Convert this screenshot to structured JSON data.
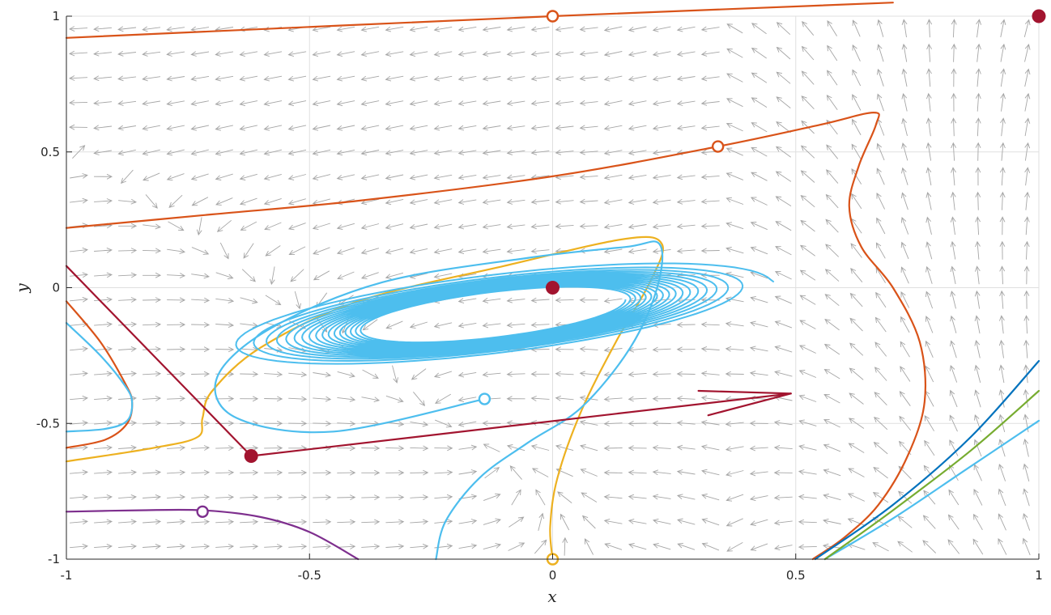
{
  "chart_data": {
    "type": "line",
    "title": "",
    "xlabel": "x",
    "ylabel": "y",
    "xlim": [
      -1,
      1
    ],
    "ylim": [
      -1,
      1
    ],
    "grid": true,
    "legend": "none",
    "x_ticks": [
      {
        "value": -1,
        "label": "-1"
      },
      {
        "value": -0.5,
        "label": "-0.5"
      },
      {
        "value": 0,
        "label": "0"
      },
      {
        "value": 0.5,
        "label": "0.5"
      },
      {
        "value": 1,
        "label": "1"
      }
    ],
    "y_ticks": [
      {
        "value": -1,
        "label": "-1"
      },
      {
        "value": -0.5,
        "label": "-0.5"
      },
      {
        "value": 0,
        "label": "0"
      },
      {
        "value": 0.5,
        "label": "0.5"
      },
      {
        "value": 1,
        "label": "1"
      }
    ],
    "colors": {
      "orange": "#d95319",
      "yellow": "#edb120",
      "lightblue": "#4dbeee",
      "darkblue": "#0072bd",
      "green": "#77ac30",
      "purple": "#7e2f8e",
      "maroon": "#a2142f",
      "field": "#a6a6a6",
      "grid": "#dfdfdf"
    },
    "series": [
      {
        "color": "orange",
        "x": [
          -1,
          0,
          0.7
        ],
        "y": [
          0.92,
          1,
          1.05
        ]
      },
      {
        "color": "orange",
        "x": [
          -1,
          -0.7,
          -0.4,
          0,
          0.34,
          0.55,
          0.66,
          0.665,
          0.63,
          0.61,
          0.635,
          0.7,
          0.755,
          0.765,
          0.73,
          0.67,
          0.6,
          0.535
        ],
        "y": [
          0.22,
          0.27,
          0.32,
          0.41,
          0.52,
          0.6,
          0.645,
          0.6,
          0.45,
          0.3,
          0.15,
          0,
          -0.2,
          -0.42,
          -0.62,
          -0.8,
          -0.92,
          -1
        ]
      },
      {
        "color": "orange",
        "x": [
          -1,
          -0.93,
          -0.88,
          -0.865,
          -0.875,
          -0.92,
          -1
        ],
        "y": [
          -0.05,
          -0.2,
          -0.35,
          -0.42,
          -0.5,
          -0.56,
          -0.59
        ]
      },
      {
        "color": "lightblue",
        "x": [
          -1,
          -0.93,
          -0.88,
          -0.865,
          -0.875,
          -0.92,
          -1
        ],
        "y": [
          -0.13,
          -0.25,
          -0.36,
          -0.42,
          -0.49,
          -0.52,
          -0.53
        ]
      },
      {
        "color": "yellow",
        "x": [
          -1,
          -0.82,
          -0.73,
          -0.72,
          -0.7,
          -0.6,
          -0.4,
          -0.1,
          0.15,
          0.225,
          0.2,
          0.13,
          0.06,
          0.01,
          -0.005,
          0
        ],
        "y": [
          -0.64,
          -0.59,
          -0.55,
          -0.48,
          -0.38,
          -0.22,
          -0.05,
          0.08,
          0.18,
          0.16,
          0.02,
          -0.2,
          -0.45,
          -0.7,
          -0.88,
          -1
        ]
      },
      {
        "color": "lightblue",
        "x": [
          -0.24,
          -0.22,
          -0.15,
          -0.05,
          0.06,
          0.16,
          0.215,
          0.22,
          0.15,
          -0.05,
          -0.35,
          -0.58,
          -0.69,
          -0.65,
          -0.45,
          -0.14
        ],
        "y": [
          -1,
          -0.86,
          -0.7,
          -0.57,
          -0.44,
          -0.22,
          0,
          0.16,
          0.15,
          0.11,
          0.02,
          -0.15,
          -0.33,
          -0.48,
          -0.53,
          -0.41
        ]
      },
      {
        "color": "lightblue",
        "x": [
          0.56,
          0.7,
          0.85,
          1
        ],
        "y": [
          -1,
          -0.85,
          -0.67,
          -0.49
        ]
      },
      {
        "color": "darkblue",
        "x": [
          0.54,
          0.7,
          0.86,
          1
        ],
        "y": [
          -1,
          -0.8,
          -0.55,
          -0.27
        ]
      },
      {
        "color": "green",
        "x": [
          0.56,
          0.7,
          0.86,
          1
        ],
        "y": [
          -1,
          -0.82,
          -0.6,
          -0.38
        ]
      },
      {
        "color": "purple",
        "x": [
          -1,
          -0.85,
          -0.72,
          -0.6,
          -0.5,
          -0.4
        ],
        "y": [
          -0.825,
          -0.82,
          -0.82,
          -0.845,
          -0.9,
          -1
        ]
      },
      {
        "color": "maroon",
        "x": [
          -1,
          -0.62,
          0.49
        ],
        "y": [
          0.08,
          -0.62,
          -0.39
        ]
      },
      {
        "color": "maroon",
        "x": [
          0.3,
          0.49
        ],
        "y": [
          -0.38,
          -0.39
        ]
      },
      {
        "color": "maroon",
        "x": [
          0.32,
          0.49
        ],
        "y": [
          -0.47,
          -0.39
        ]
      }
    ],
    "spiral": {
      "color": "lightblue",
      "center": [
        -0.12,
        -0.1
      ],
      "inner": {
        "a": 0.27,
        "b": 0.083
      },
      "outer": {
        "a": 0.575,
        "b": 0.155
      },
      "tilt": [
        1,
        0.42
      ],
      "turns": 17
    },
    "markers": [
      {
        "x": 0,
        "y": 1,
        "style": "open",
        "color": "orange"
      },
      {
        "x": 0.34,
        "y": 0.52,
        "style": "open",
        "color": "orange"
      },
      {
        "x": -0.14,
        "y": -0.41,
        "style": "open",
        "color": "lightblue"
      },
      {
        "x": 0,
        "y": -1,
        "style": "open",
        "color": "yellow"
      },
      {
        "x": -0.72,
        "y": -0.825,
        "style": "open",
        "color": "purple"
      },
      {
        "x": 1,
        "y": 1,
        "style": "filled",
        "color": "maroon"
      },
      {
        "x": 0,
        "y": 0,
        "style": "filled",
        "color": "maroon"
      },
      {
        "x": -0.62,
        "y": -0.62,
        "style": "filled",
        "color": "maroon"
      }
    ]
  }
}
